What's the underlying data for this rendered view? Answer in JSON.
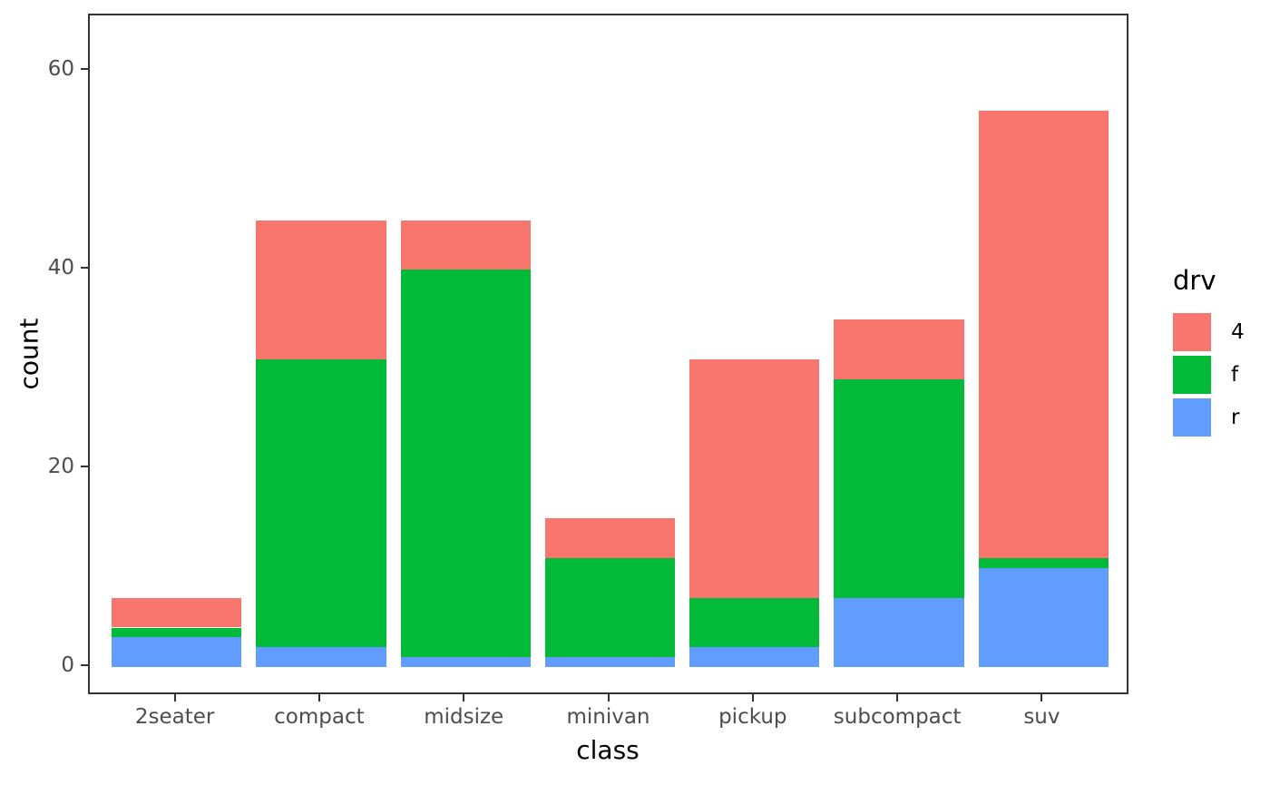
{
  "chart_data": {
    "type": "bar",
    "stacked": true,
    "title": "",
    "xlabel": "class",
    "ylabel": "count",
    "categories": [
      "2seater",
      "compact",
      "midsize",
      "minivan",
      "pickup",
      "subcompact",
      "suv"
    ],
    "series": [
      {
        "name": "4",
        "color": "#F8766D",
        "values": [
          3,
          14,
          5,
          4,
          24,
          6,
          45
        ]
      },
      {
        "name": "f",
        "color": "#00BA38",
        "values": [
          1,
          29,
          39,
          10,
          5,
          22,
          1
        ]
      },
      {
        "name": "r",
        "color": "#619CFF",
        "values": [
          3,
          2,
          1,
          1,
          2,
          7,
          10
        ]
      }
    ],
    "stack_order_bottom_to_top": [
      "r",
      "f",
      "4"
    ],
    "totals": [
      7,
      45,
      45,
      15,
      31,
      35,
      56
    ],
    "y_ticks": [
      "0",
      "20",
      "40",
      "60"
    ],
    "ylim": [
      -3,
      65.5
    ],
    "grid": false,
    "legend": {
      "title": "drv",
      "position": "right"
    },
    "colors": {
      "panel_border": "#333333",
      "tick_text": "#4d4d4d",
      "axis_title_text": "#000000",
      "background": "#ffffff"
    }
  }
}
